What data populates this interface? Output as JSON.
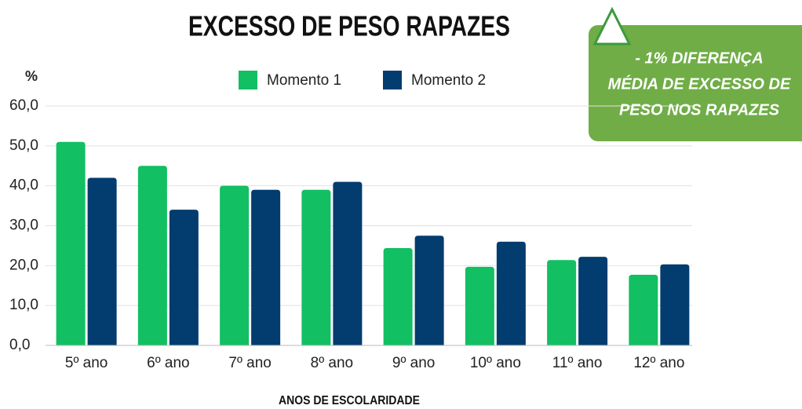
{
  "chart_data": {
    "type": "bar",
    "title": "EXCESSO DE PESO RAPAZES",
    "y_label": "%",
    "x_label": "ANOS DE ESCOLARIDADE",
    "annotation": [
      "- 1% DIFERENÇA",
      "MÉDIA DE EXCESSO DE",
      "PESO NOS RAPAZES"
    ],
    "categories": [
      "5º ano",
      "6º ano",
      "7º ano",
      "8º ano",
      "9º ano",
      "10º ano",
      "11º ano",
      "12º ano"
    ],
    "series": [
      {
        "name": "Momento 1",
        "color": "#12bf62",
        "values": [
          51,
          45,
          40,
          39,
          24.4,
          19.7,
          21.4,
          17.7
        ]
      },
      {
        "name": "Momento 2",
        "color": "#033c6f",
        "values": [
          42,
          34,
          39,
          41,
          27.5,
          26,
          22.2,
          20.3
        ]
      }
    ],
    "ylim": [
      0,
      60
    ],
    "yticks": [
      {
        "value": 0,
        "label": "0,0"
      },
      {
        "value": 10,
        "label": "10,0"
      },
      {
        "value": 20,
        "label": "20,0"
      },
      {
        "value": 30,
        "label": "30,0"
      },
      {
        "value": 40,
        "label": "40,0"
      },
      {
        "value": 50,
        "label": "50,0"
      },
      {
        "value": 60,
        "label": "60,0"
      }
    ],
    "grid": true,
    "legend": "top"
  }
}
